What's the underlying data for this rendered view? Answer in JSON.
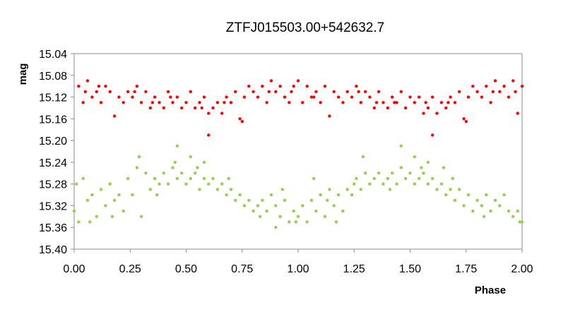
{
  "chart_data": {
    "type": "scatter",
    "title": "ZTFJ015503.00+542632.7",
    "xlabel": "Phase",
    "ylabel": "mag",
    "xlim": [
      0.0,
      2.0
    ],
    "ylim": [
      15.04,
      15.4
    ],
    "y_inverted": true,
    "grid": false,
    "legend": "none",
    "x_ticks": [
      "0.00",
      "0.25",
      "0.50",
      "0.75",
      "1.00",
      "1.25",
      "1.50",
      "1.75",
      "2.00"
    ],
    "y_ticks": [
      "15.04",
      "15.08",
      "15.12",
      "15.16",
      "15.20",
      "15.24",
      "15.28",
      "15.32",
      "15.36",
      "15.40"
    ],
    "series": [
      {
        "color": "#ff0000",
        "points": [
          [
            0.02,
            15.1
          ],
          [
            0.04,
            15.13
          ],
          [
            0.06,
            15.09
          ],
          [
            0.08,
            15.12
          ],
          [
            0.1,
            15.11
          ],
          [
            0.12,
            15.13
          ],
          [
            0.14,
            15.1
          ],
          [
            0.16,
            15.11
          ],
          [
            0.18,
            15.155
          ],
          [
            0.2,
            15.12
          ],
          [
            0.22,
            15.13
          ],
          [
            0.24,
            15.11
          ],
          [
            0.26,
            15.12
          ],
          [
            0.28,
            15.1
          ],
          [
            0.3,
            15.13
          ],
          [
            0.32,
            15.11
          ],
          [
            0.34,
            15.14
          ],
          [
            0.36,
            15.12
          ],
          [
            0.38,
            15.13
          ],
          [
            0.4,
            15.14
          ],
          [
            0.42,
            15.11
          ],
          [
            0.44,
            15.13
          ],
          [
            0.46,
            15.12
          ],
          [
            0.48,
            15.14
          ],
          [
            0.5,
            15.13
          ],
          [
            0.52,
            15.11
          ],
          [
            0.54,
            15.14
          ],
          [
            0.56,
            15.13
          ],
          [
            0.58,
            15.12
          ],
          [
            0.6,
            15.15
          ],
          [
            0.62,
            15.14
          ],
          [
            0.64,
            15.13
          ],
          [
            0.66,
            15.15
          ],
          [
            0.68,
            15.12
          ],
          [
            0.7,
            15.13
          ],
          [
            0.72,
            15.11
          ],
          [
            0.74,
            15.16
          ],
          [
            0.76,
            15.12
          ],
          [
            0.78,
            15.1
          ],
          [
            0.8,
            15.11
          ],
          [
            0.82,
            15.12
          ],
          [
            0.84,
            15.1
          ],
          [
            0.86,
            15.13
          ],
          [
            0.88,
            15.09
          ],
          [
            0.9,
            15.11
          ],
          [
            0.92,
            15.1
          ],
          [
            0.94,
            15.12
          ],
          [
            0.96,
            15.13
          ],
          [
            0.98,
            15.1
          ],
          [
            1.0,
            15.09
          ],
          [
            1.02,
            15.13
          ],
          [
            1.04,
            15.1
          ],
          [
            1.06,
            15.12
          ],
          [
            1.08,
            15.11
          ],
          [
            1.1,
            15.13
          ],
          [
            1.12,
            15.1
          ],
          [
            1.14,
            15.155
          ],
          [
            1.16,
            15.11
          ],
          [
            1.18,
            15.12
          ],
          [
            1.2,
            15.13
          ],
          [
            1.22,
            15.11
          ],
          [
            1.24,
            15.12
          ],
          [
            1.26,
            15.1
          ],
          [
            1.28,
            15.13
          ],
          [
            1.3,
            15.11
          ],
          [
            1.32,
            15.12
          ],
          [
            1.34,
            15.14
          ],
          [
            1.36,
            15.11
          ],
          [
            1.38,
            15.13
          ],
          [
            1.4,
            15.14
          ],
          [
            1.42,
            15.12
          ],
          [
            1.44,
            15.13
          ],
          [
            1.46,
            15.11
          ],
          [
            1.48,
            15.14
          ],
          [
            1.5,
            15.12
          ],
          [
            1.52,
            15.13
          ],
          [
            1.54,
            15.12
          ],
          [
            1.56,
            15.15
          ],
          [
            1.58,
            15.14
          ],
          [
            1.6,
            15.12
          ],
          [
            1.62,
            15.15
          ],
          [
            1.64,
            15.13
          ],
          [
            1.66,
            15.14
          ],
          [
            1.68,
            15.12
          ],
          [
            1.7,
            15.13
          ],
          [
            1.72,
            15.11
          ],
          [
            1.74,
            15.16
          ],
          [
            1.76,
            15.12
          ],
          [
            1.78,
            15.1
          ],
          [
            1.8,
            15.11
          ],
          [
            1.82,
            15.12
          ],
          [
            1.84,
            15.1
          ],
          [
            1.86,
            15.13
          ],
          [
            1.88,
            15.09
          ],
          [
            1.9,
            15.11
          ],
          [
            1.92,
            15.1
          ],
          [
            1.94,
            15.12
          ],
          [
            1.96,
            15.09
          ],
          [
            1.98,
            15.15
          ],
          [
            2.0,
            15.1
          ],
          [
            0.05,
            15.11
          ],
          [
            0.11,
            15.1
          ],
          [
            0.27,
            15.11
          ],
          [
            0.43,
            15.12
          ],
          [
            0.57,
            15.14
          ],
          [
            0.67,
            15.13
          ],
          [
            0.87,
            15.11
          ],
          [
            0.97,
            15.11
          ],
          [
            1.07,
            15.12
          ],
          [
            1.27,
            15.11
          ],
          [
            1.43,
            15.13
          ],
          [
            1.57,
            15.13
          ],
          [
            1.67,
            15.13
          ],
          [
            1.87,
            15.11
          ],
          [
            1.97,
            15.11
          ],
          [
            0.35,
            15.13
          ],
          [
            1.35,
            15.13
          ],
          [
            0.75,
            15.165
          ],
          [
            1.75,
            15.165
          ],
          [
            0.6,
            15.19
          ],
          [
            1.6,
            15.19
          ]
        ]
      },
      {
        "color": "#92d050",
        "points": [
          [
            0.0,
            15.33
          ],
          [
            0.02,
            15.35
          ],
          [
            0.04,
            15.27
          ],
          [
            0.06,
            15.31
          ],
          [
            0.08,
            15.3
          ],
          [
            0.1,
            15.34
          ],
          [
            0.12,
            15.29
          ],
          [
            0.14,
            15.32
          ],
          [
            0.16,
            15.28
          ],
          [
            0.18,
            15.31
          ],
          [
            0.2,
            15.3
          ],
          [
            0.22,
            15.33
          ],
          [
            0.24,
            15.27
          ],
          [
            0.26,
            15.3
          ],
          [
            0.28,
            15.25
          ],
          [
            0.3,
            15.34
          ],
          [
            0.32,
            15.26
          ],
          [
            0.34,
            15.29
          ],
          [
            0.36,
            15.27
          ],
          [
            0.38,
            15.28
          ],
          [
            0.4,
            15.26
          ],
          [
            0.42,
            15.28
          ],
          [
            0.44,
            15.25
          ],
          [
            0.46,
            15.27
          ],
          [
            0.48,
            15.26
          ],
          [
            0.5,
            15.28
          ],
          [
            0.52,
            15.27
          ],
          [
            0.54,
            15.26
          ],
          [
            0.56,
            15.29
          ],
          [
            0.58,
            15.27
          ],
          [
            0.6,
            15.28
          ],
          [
            0.62,
            15.27
          ],
          [
            0.64,
            15.29
          ],
          [
            0.66,
            15.28
          ],
          [
            0.68,
            15.3
          ],
          [
            0.7,
            15.29
          ],
          [
            0.72,
            15.31
          ],
          [
            0.74,
            15.3
          ],
          [
            0.76,
            15.32
          ],
          [
            0.78,
            15.31
          ],
          [
            0.8,
            15.33
          ],
          [
            0.82,
            15.32
          ],
          [
            0.84,
            15.31
          ],
          [
            0.86,
            15.33
          ],
          [
            0.88,
            15.3
          ],
          [
            0.9,
            15.32
          ],
          [
            0.92,
            15.34
          ],
          [
            0.94,
            15.31
          ],
          [
            0.96,
            15.35
          ],
          [
            0.98,
            15.33
          ],
          [
            1.0,
            15.34
          ],
          [
            1.02,
            15.32
          ],
          [
            1.04,
            15.35
          ],
          [
            1.06,
            15.31
          ],
          [
            1.08,
            15.33
          ],
          [
            1.1,
            15.3
          ],
          [
            1.12,
            15.34
          ],
          [
            1.14,
            15.29
          ],
          [
            1.16,
            15.32
          ],
          [
            1.18,
            15.3
          ],
          [
            1.2,
            15.33
          ],
          [
            1.22,
            15.29
          ],
          [
            1.24,
            15.3
          ],
          [
            1.26,
            15.27
          ],
          [
            1.28,
            15.29
          ],
          [
            1.3,
            15.26
          ],
          [
            1.32,
            15.28
          ],
          [
            1.34,
            15.27
          ],
          [
            1.36,
            15.26
          ],
          [
            1.38,
            15.28
          ],
          [
            1.4,
            15.27
          ],
          [
            1.42,
            15.26
          ],
          [
            1.44,
            15.28
          ],
          [
            1.46,
            15.25
          ],
          [
            1.48,
            15.27
          ],
          [
            1.5,
            15.26
          ],
          [
            1.52,
            15.28
          ],
          [
            1.54,
            15.27
          ],
          [
            1.56,
            15.26
          ],
          [
            1.58,
            15.28
          ],
          [
            1.6,
            15.27
          ],
          [
            1.62,
            15.29
          ],
          [
            1.64,
            15.28
          ],
          [
            1.66,
            15.3
          ],
          [
            1.68,
            15.29
          ],
          [
            1.7,
            15.31
          ],
          [
            1.72,
            15.29
          ],
          [
            1.74,
            15.32
          ],
          [
            1.76,
            15.3
          ],
          [
            1.78,
            15.33
          ],
          [
            1.8,
            15.31
          ],
          [
            1.82,
            15.32
          ],
          [
            1.84,
            15.3
          ],
          [
            1.86,
            15.33
          ],
          [
            1.88,
            15.31
          ],
          [
            1.9,
            15.32
          ],
          [
            1.92,
            15.3
          ],
          [
            1.94,
            15.33
          ],
          [
            1.96,
            15.34
          ],
          [
            1.98,
            15.33
          ],
          [
            2.0,
            15.35
          ],
          [
            0.01,
            15.28
          ],
          [
            0.29,
            15.23
          ],
          [
            0.46,
            15.21
          ],
          [
            0.58,
            15.24
          ],
          [
            0.52,
            15.23
          ],
          [
            1.29,
            15.23
          ],
          [
            1.46,
            15.21
          ],
          [
            1.58,
            15.24
          ],
          [
            1.52,
            15.23
          ],
          [
            0.07,
            15.35
          ],
          [
            0.17,
            15.34
          ],
          [
            0.37,
            15.3
          ],
          [
            0.55,
            15.25
          ],
          [
            0.69,
            15.27
          ],
          [
            0.83,
            15.34
          ],
          [
            0.99,
            15.35
          ],
          [
            1.17,
            15.35
          ],
          [
            1.25,
            15.28
          ],
          [
            1.41,
            15.29
          ],
          [
            1.55,
            15.25
          ],
          [
            1.69,
            15.27
          ],
          [
            1.83,
            15.34
          ],
          [
            1.99,
            15.35
          ],
          [
            0.9,
            15.36
          ],
          [
            0.93,
            15.29
          ],
          [
            1.07,
            15.27
          ],
          [
            1.13,
            15.31
          ],
          [
            0.45,
            15.24
          ],
          [
            1.65,
            15.25
          ]
        ]
      }
    ]
  }
}
